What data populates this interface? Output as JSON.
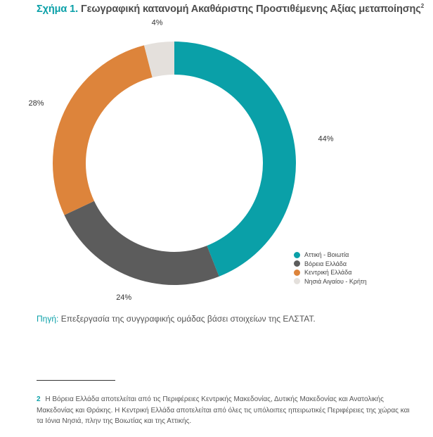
{
  "figure": {
    "prefix": "Σχήμα 1.",
    "title": "Γεωγραφική κατανομή Ακαθάριστης Προστιθέμενης Αξίας μεταποίησης",
    "footnote_ref": "2"
  },
  "chart_data": {
    "type": "pie",
    "variant": "donut",
    "categories": [
      "Αττική - Βοιωτία",
      "Βόρεια Ελλάδα",
      "Κεντρική Ελλάδα",
      "Νησιά Αιγαίου - Κρήτη"
    ],
    "values": [
      44,
      24,
      28,
      4
    ],
    "value_labels": [
      "44%",
      "24%",
      "28%",
      "4%"
    ],
    "colors": [
      "#0aa0a8",
      "#5c5c5c",
      "#dd843b",
      "#e4e0dc"
    ],
    "legend_placement": "bottom-right"
  },
  "source": {
    "label": "Πηγή:",
    "text": "Επεξεργασία της συγγραφικής ομάδας βάσει στοιχείων της ΕΛΣΤΑΤ."
  },
  "footnote": {
    "number": "2",
    "text": "Η Βόρεια Ελλάδα αποτελείται από τις Περιφέρειες Κεντρικής Μακεδονίας, Δυτικής Μακεδονίας και Ανατολικής Μακεδονίας και Θράκης. Η Κεντρική Ελλάδα αποτελείται από όλες τις υπόλοιπες ηπειρωτικές Περιφέρειες της χώρας και τα Ιόνια Νησιά, πλην της Βοιωτίας και της Αττικής."
  }
}
